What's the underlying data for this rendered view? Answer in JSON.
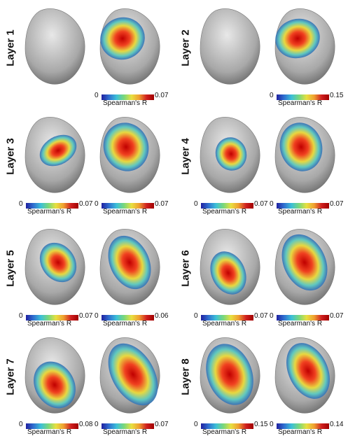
{
  "panels": [
    {
      "label": "Layer 1",
      "left": {
        "min": "",
        "max": "",
        "title": ""
      },
      "right": {
        "min": "0",
        "max": "0.07",
        "title": "Spearman's R"
      }
    },
    {
      "label": "Layer 2",
      "left": {
        "min": "",
        "max": "",
        "title": ""
      },
      "right": {
        "min": "0",
        "max": "0.15",
        "title": "Spearman's R"
      }
    },
    {
      "label": "Layer 3",
      "left": {
        "min": "0",
        "max": "0.07",
        "title": "Spearman's R"
      },
      "right": {
        "min": "0",
        "max": "0.07",
        "title": "Spearman's R"
      }
    },
    {
      "label": "Layer 4",
      "left": {
        "min": "0",
        "max": "0.07",
        "title": "Spearman's R"
      },
      "right": {
        "min": "0",
        "max": "0.07",
        "title": "Spearman's R"
      }
    },
    {
      "label": "Layer 5",
      "left": {
        "min": "0",
        "max": "0.07",
        "title": "Spearman's R"
      },
      "right": {
        "min": "0",
        "max": "0.06",
        "title": "Spearman's R"
      }
    },
    {
      "label": "Layer 6",
      "left": {
        "min": "0",
        "max": "0.07",
        "title": "Spearman's R"
      },
      "right": {
        "min": "0",
        "max": "0.07",
        "title": "Spearman's R"
      }
    },
    {
      "label": "Layer 7",
      "left": {
        "min": "0",
        "max": "0.08",
        "title": "Spearman's R"
      },
      "right": {
        "min": "0",
        "max": "0.07",
        "title": "Spearman's R"
      }
    },
    {
      "label": "Layer 8",
      "left": {
        "min": "0",
        "max": "0.15",
        "title": "Spearman's R"
      },
      "right": {
        "min": "0",
        "max": "0.14",
        "title": "Spearman's R"
      }
    }
  ],
  "colors": {
    "cortex": "#b8b8b8",
    "low": "#2020a0",
    "mid": "#e8e040",
    "high": "#d02020"
  }
}
